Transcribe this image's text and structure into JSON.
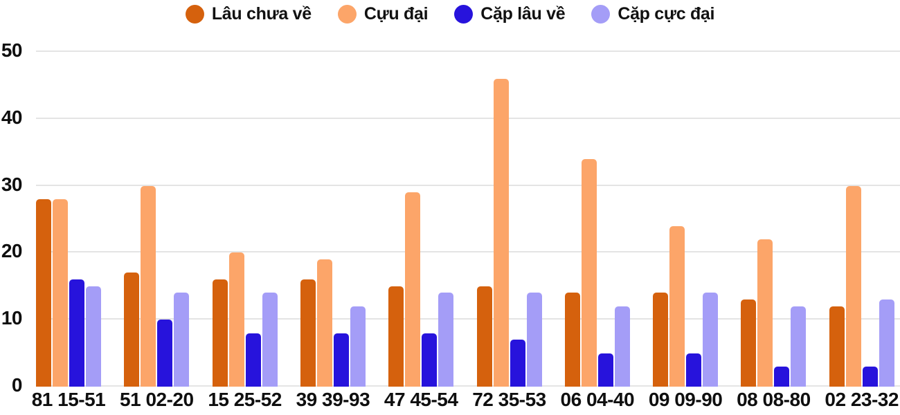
{
  "chart_data": {
    "type": "bar",
    "title": "",
    "categories": [
      "81 15-51",
      "51 02-20",
      "15 25-52",
      "39 39-93",
      "47 45-54",
      "72 35-53",
      "06 04-40",
      "09 09-90",
      "08 08-80",
      "02 23-32"
    ],
    "series": [
      {
        "name": "Lâu chưa về",
        "color": "#d5610d",
        "values": [
          28,
          17,
          16,
          16,
          15,
          15,
          14,
          14,
          13,
          12
        ]
      },
      {
        "name": "Cựu đại",
        "color": "#fca569",
        "values": [
          28,
          30,
          20,
          19,
          29,
          46,
          34,
          24,
          22,
          30
        ]
      },
      {
        "name": "Cặp lâu về",
        "color": "#2713dc",
        "values": [
          16,
          10,
          8,
          8,
          8,
          7,
          5,
          5,
          3,
          3
        ]
      },
      {
        "name": "Cặp cực đại",
        "color": "#a49df7",
        "values": [
          15,
          14,
          14,
          12,
          14,
          14,
          12,
          14,
          12,
          13
        ]
      }
    ],
    "xlabel": "",
    "ylabel": "",
    "ylim": [
      0,
      50
    ],
    "yticks": [
      0,
      10,
      20,
      30,
      40,
      50
    ],
    "grid": true,
    "gridline_color": "#e4e4e4",
    "text_color": "#0f0f0f",
    "background": "#ffffff",
    "legend_position": "top"
  }
}
